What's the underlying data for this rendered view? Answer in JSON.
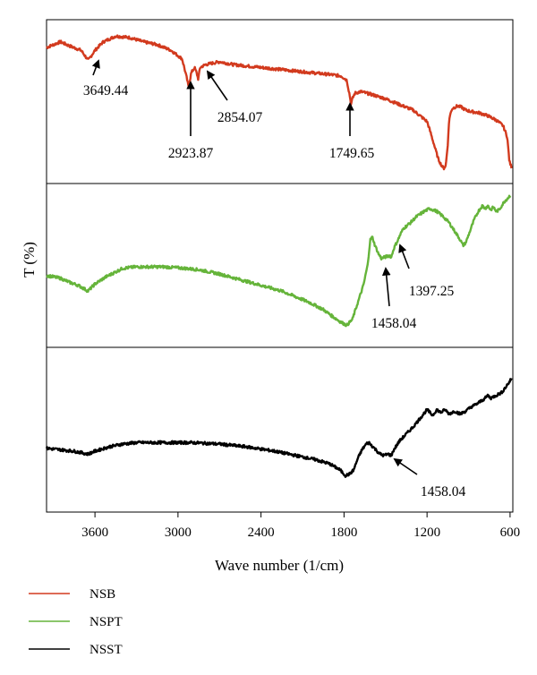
{
  "chart_data": {
    "type": "line",
    "xlabel": "Wave number (1/cm)",
    "ylabel": "T (%)",
    "xlim": [
      3950,
      580
    ],
    "x_reversed": true,
    "x_ticks": [
      3600,
      3000,
      2400,
      1800,
      1200,
      600
    ],
    "legend_position": "bottom-left",
    "series": [
      {
        "name": "NSB",
        "color": "#d23a1e",
        "points": [
          [
            3950,
            0.88
          ],
          [
            3850,
            0.92
          ],
          [
            3780,
            0.89
          ],
          [
            3700,
            0.86
          ],
          [
            3649,
            0.79
          ],
          [
            3600,
            0.86
          ],
          [
            3540,
            0.92
          ],
          [
            3450,
            0.96
          ],
          [
            3350,
            0.95
          ],
          [
            3250,
            0.92
          ],
          [
            3150,
            0.9
          ],
          [
            3050,
            0.86
          ],
          [
            2970,
            0.8
          ],
          [
            2940,
            0.68
          ],
          [
            2923,
            0.6
          ],
          [
            2905,
            0.7
          ],
          [
            2880,
            0.74
          ],
          [
            2865,
            0.7
          ],
          [
            2854,
            0.66
          ],
          [
            2840,
            0.74
          ],
          [
            2800,
            0.76
          ],
          [
            2700,
            0.78
          ],
          [
            2600,
            0.76
          ],
          [
            2500,
            0.75
          ],
          [
            2400,
            0.74
          ],
          [
            2300,
            0.73
          ],
          [
            2200,
            0.72
          ],
          [
            2100,
            0.71
          ],
          [
            2000,
            0.7
          ],
          [
            1900,
            0.69
          ],
          [
            1820,
            0.68
          ],
          [
            1780,
            0.65
          ],
          [
            1760,
            0.55
          ],
          [
            1749,
            0.48
          ],
          [
            1740,
            0.52
          ],
          [
            1720,
            0.56
          ],
          [
            1680,
            0.57
          ],
          [
            1600,
            0.55
          ],
          [
            1500,
            0.52
          ],
          [
            1400,
            0.48
          ],
          [
            1300,
            0.44
          ],
          [
            1250,
            0.4
          ],
          [
            1200,
            0.36
          ],
          [
            1180,
            0.3
          ],
          [
            1150,
            0.2
          ],
          [
            1120,
            0.1
          ],
          [
            1100,
            0.06
          ],
          [
            1080,
            0.03
          ],
          [
            1065,
            0.05
          ],
          [
            1050,
            0.2
          ],
          [
            1040,
            0.38
          ],
          [
            1020,
            0.45
          ],
          [
            980,
            0.47
          ],
          [
            950,
            0.46
          ],
          [
            920,
            0.44
          ],
          [
            880,
            0.43
          ],
          [
            820,
            0.42
          ],
          [
            760,
            0.4
          ],
          [
            700,
            0.37
          ],
          [
            650,
            0.33
          ],
          [
            620,
            0.25
          ],
          [
            605,
            0.08
          ],
          [
            590,
            0.04
          ]
        ]
      },
      {
        "name": "NSPT",
        "color": "#65b43a",
        "points": [
          [
            3950,
            0.43
          ],
          [
            3850,
            0.41
          ],
          [
            3780,
            0.38
          ],
          [
            3720,
            0.36
          ],
          [
            3650,
            0.32
          ],
          [
            3600,
            0.37
          ],
          [
            3520,
            0.42
          ],
          [
            3400,
            0.48
          ],
          [
            3300,
            0.49
          ],
          [
            3100,
            0.49
          ],
          [
            2950,
            0.48
          ],
          [
            2850,
            0.47
          ],
          [
            2700,
            0.44
          ],
          [
            2550,
            0.4
          ],
          [
            2400,
            0.36
          ],
          [
            2250,
            0.32
          ],
          [
            2150,
            0.28
          ],
          [
            2050,
            0.24
          ],
          [
            1950,
            0.19
          ],
          [
            1880,
            0.14
          ],
          [
            1820,
            0.1
          ],
          [
            1780,
            0.08
          ],
          [
            1740,
            0.12
          ],
          [
            1700,
            0.24
          ],
          [
            1660,
            0.36
          ],
          [
            1630,
            0.5
          ],
          [
            1610,
            0.68
          ],
          [
            1595,
            0.7
          ],
          [
            1580,
            0.65
          ],
          [
            1550,
            0.58
          ],
          [
            1530,
            0.55
          ],
          [
            1500,
            0.56
          ],
          [
            1470,
            0.57
          ],
          [
            1458,
            0.56
          ],
          [
            1440,
            0.62
          ],
          [
            1420,
            0.66
          ],
          [
            1400,
            0.7
          ],
          [
            1397,
            0.71
          ],
          [
            1370,
            0.76
          ],
          [
            1320,
            0.8
          ],
          [
            1280,
            0.84
          ],
          [
            1220,
            0.88
          ],
          [
            1180,
            0.9
          ],
          [
            1130,
            0.88
          ],
          [
            1080,
            0.84
          ],
          [
            1040,
            0.8
          ],
          [
            1000,
            0.74
          ],
          [
            960,
            0.68
          ],
          [
            940,
            0.64
          ],
          [
            920,
            0.66
          ],
          [
            890,
            0.74
          ],
          [
            860,
            0.82
          ],
          [
            830,
            0.88
          ],
          [
            800,
            0.92
          ],
          [
            780,
            0.9
          ],
          [
            760,
            0.92
          ],
          [
            740,
            0.89
          ],
          [
            720,
            0.91
          ],
          [
            700,
            0.88
          ],
          [
            680,
            0.89
          ],
          [
            660,
            0.92
          ],
          [
            640,
            0.95
          ],
          [
            610,
            0.98
          ],
          [
            595,
            1.0
          ]
        ]
      },
      {
        "name": "NSST",
        "color": "#000000",
        "points": [
          [
            3950,
            0.37
          ],
          [
            3850,
            0.36
          ],
          [
            3750,
            0.35
          ],
          [
            3650,
            0.33
          ],
          [
            3600,
            0.35
          ],
          [
            3500,
            0.38
          ],
          [
            3400,
            0.4
          ],
          [
            3300,
            0.41
          ],
          [
            3100,
            0.41
          ],
          [
            2900,
            0.41
          ],
          [
            2700,
            0.4
          ],
          [
            2500,
            0.38
          ],
          [
            2300,
            0.35
          ],
          [
            2150,
            0.32
          ],
          [
            2000,
            0.29
          ],
          [
            1900,
            0.26
          ],
          [
            1830,
            0.22
          ],
          [
            1790,
            0.18
          ],
          [
            1760,
            0.19
          ],
          [
            1730,
            0.22
          ],
          [
            1700,
            0.3
          ],
          [
            1670,
            0.36
          ],
          [
            1640,
            0.4
          ],
          [
            1620,
            0.41
          ],
          [
            1600,
            0.39
          ],
          [
            1570,
            0.36
          ],
          [
            1540,
            0.33
          ],
          [
            1510,
            0.32
          ],
          [
            1480,
            0.33
          ],
          [
            1458,
            0.32
          ],
          [
            1440,
            0.36
          ],
          [
            1400,
            0.42
          ],
          [
            1360,
            0.46
          ],
          [
            1300,
            0.52
          ],
          [
            1250,
            0.58
          ],
          [
            1200,
            0.64
          ],
          [
            1160,
            0.6
          ],
          [
            1130,
            0.64
          ],
          [
            1100,
            0.62
          ],
          [
            1070,
            0.64
          ],
          [
            1040,
            0.61
          ],
          [
            1000,
            0.63
          ],
          [
            960,
            0.61
          ],
          [
            920,
            0.63
          ],
          [
            880,
            0.66
          ],
          [
            840,
            0.68
          ],
          [
            810,
            0.7
          ],
          [
            780,
            0.72
          ],
          [
            760,
            0.74
          ],
          [
            740,
            0.72
          ],
          [
            700,
            0.74
          ],
          [
            660,
            0.76
          ],
          [
            630,
            0.8
          ],
          [
            600,
            0.84
          ],
          [
            590,
            0.86
          ]
        ]
      }
    ],
    "annotations": [
      {
        "series": "NSB",
        "text": "3649.44",
        "x": 3649
      },
      {
        "series": "NSB",
        "text": "2923.87",
        "x": 2923
      },
      {
        "series": "NSB",
        "text": "2854.07",
        "x": 2854
      },
      {
        "series": "NSB",
        "text": "1749.65",
        "x": 1749
      },
      {
        "series": "NSPT",
        "text": "1458.04",
        "x": 1458
      },
      {
        "series": "NSPT",
        "text": "1397.25",
        "x": 1397
      },
      {
        "series": "NSST",
        "text": "1458.04",
        "x": 1458
      }
    ]
  }
}
